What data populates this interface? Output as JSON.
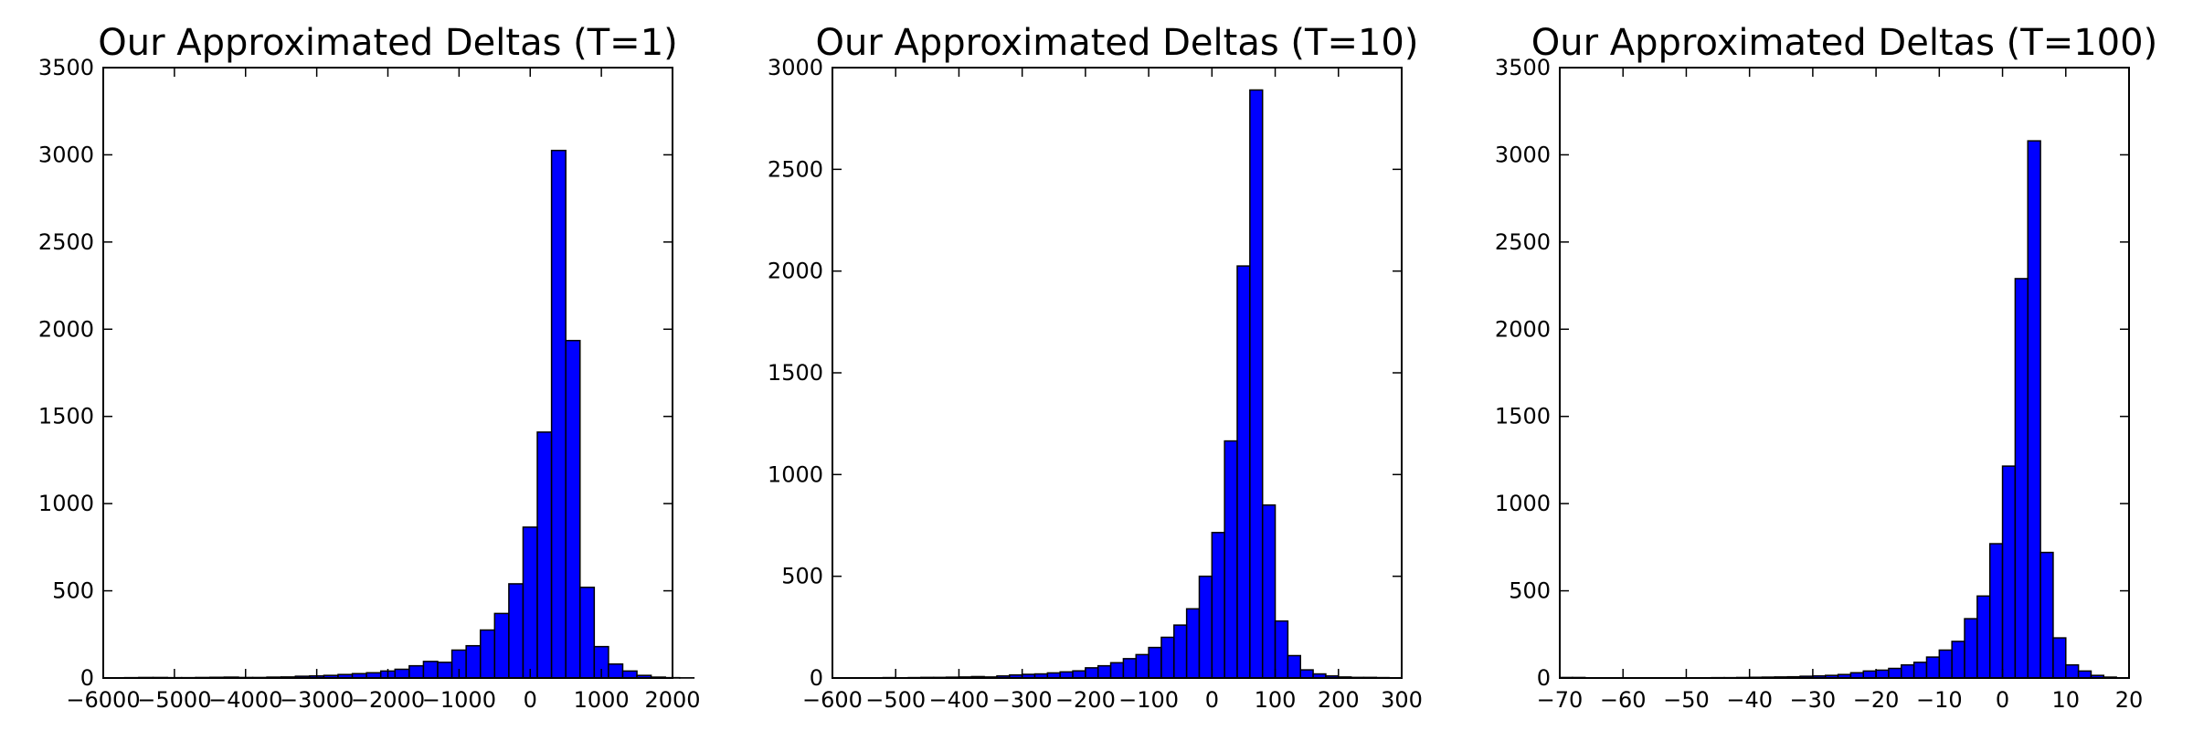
{
  "chart_data": [
    {
      "type": "bar",
      "title": "Our Approximated Deltas (T=1)",
      "xlabel": "",
      "ylabel": "",
      "xlim": [
        -6000,
        2000
      ],
      "ylim": [
        0,
        3500
      ],
      "xticks": [
        -6000,
        -5000,
        -4000,
        -3000,
        -2000,
        -1000,
        0,
        1000,
        2000
      ],
      "xtick_labels": [
        "−6000",
        "−5000",
        "−4000",
        "−3000",
        "−2000",
        "−1000",
        "0",
        "1000",
        "2000"
      ],
      "yticks": [
        0,
        500,
        1000,
        1500,
        2000,
        2500,
        3000,
        3500
      ],
      "ytick_labels": [
        "0",
        "500",
        "1000",
        "1500",
        "2000",
        "2500",
        "3000",
        "3500"
      ],
      "bin_width": 200,
      "bin_edges_start": -5700,
      "values": [
        2,
        3,
        3,
        2,
        2,
        3,
        4,
        5,
        3,
        3,
        5,
        6,
        10,
        12,
        15,
        20,
        25,
        30,
        40,
        50,
        70,
        95,
        90,
        160,
        185,
        275,
        370,
        540,
        865,
        1410,
        3025,
        1935,
        520,
        180,
        80,
        40,
        15,
        5,
        2,
        1
      ],
      "bar_color": "#0000ff",
      "grid": false
    },
    {
      "type": "bar",
      "title": "Our Approximated Deltas (T=10)",
      "xlabel": "",
      "ylabel": "",
      "xlim": [
        -600,
        300
      ],
      "ylim": [
        0,
        3000
      ],
      "xticks": [
        -600,
        -500,
        -400,
        -300,
        -200,
        -100,
        0,
        100,
        200,
        300
      ],
      "xtick_labels": [
        "−600",
        "−500",
        "−400",
        "−300",
        "−200",
        "−100",
        "0",
        "100",
        "200",
        "300"
      ],
      "yticks": [
        0,
        500,
        1000,
        1500,
        2000,
        2500,
        3000
      ],
      "ytick_labels": [
        "0",
        "500",
        "1000",
        "1500",
        "2000",
        "2500",
        "3000"
      ],
      "bin_width": 20,
      "bin_edges_start": -560,
      "values": [
        1,
        1,
        2,
        1,
        2,
        3,
        3,
        4,
        5,
        7,
        5,
        10,
        15,
        18,
        20,
        25,
        30,
        35,
        50,
        60,
        75,
        95,
        115,
        150,
        200,
        260,
        340,
        500,
        715,
        1165,
        2025,
        2890,
        850,
        280,
        110,
        40,
        20,
        10,
        5,
        3,
        3,
        2
      ],
      "bar_color": "#0000ff",
      "grid": false
    },
    {
      "type": "bar",
      "title": "Our Approximated Deltas (T=100)",
      "xlabel": "",
      "ylabel": "",
      "xlim": [
        -70,
        20
      ],
      "ylim": [
        0,
        3500
      ],
      "xticks": [
        -70,
        -60,
        -50,
        -40,
        -30,
        -20,
        -10,
        0,
        10,
        20
      ],
      "xtick_labels": [
        "−70",
        "−60",
        "−50",
        "−40",
        "−30",
        "−20",
        "−10",
        "0",
        "10",
        "20"
      ],
      "yticks": [
        0,
        500,
        1000,
        1500,
        2000,
        2500,
        3000,
        3500
      ],
      "ytick_labels": [
        "0",
        "500",
        "1000",
        "1500",
        "2000",
        "2500",
        "3000",
        "3500"
      ],
      "bin_width": 2,
      "bin_edges_start": -70,
      "values": [
        3,
        3,
        1,
        1,
        1,
        1,
        1,
        1,
        1,
        1,
        1,
        1,
        2,
        2,
        3,
        4,
        5,
        6,
        7,
        10,
        12,
        15,
        20,
        30,
        40,
        45,
        55,
        75,
        90,
        120,
        160,
        210,
        340,
        470,
        770,
        1215,
        2290,
        3080,
        720,
        230,
        75,
        40,
        15,
        5
      ],
      "bar_color": "#0000ff",
      "grid": false
    }
  ]
}
